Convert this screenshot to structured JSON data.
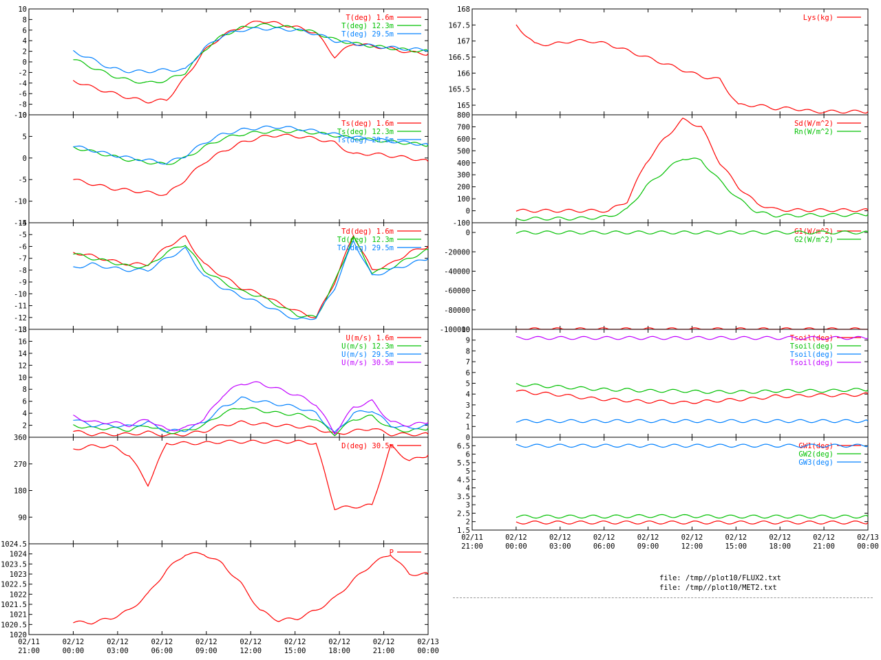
{
  "colors": {
    "red": "#ff0000",
    "green": "#00c000",
    "blue": "#0080ff",
    "magenta": "#c000ff",
    "axis": "#000000",
    "grid": "#a0a0a0"
  },
  "files": [
    "file: /tmp//plot10/FLUX2.txt",
    "file: /tmp//plot10/MET2.txt"
  ],
  "x_axis": {
    "start": "02/11 21:00",
    "end": "02/13 00:00",
    "tick_dates": [
      "02/11",
      "02/12",
      "02/12",
      "02/12",
      "02/12",
      "02/12",
      "02/12",
      "02/12",
      "02/12",
      "02/13"
    ],
    "tick_times": [
      "21:00",
      "00:00",
      "03:00",
      "06:00",
      "09:00",
      "12:00",
      "15:00",
      "18:00",
      "21:00",
      "00:00"
    ],
    "data_start_hours": 3
  },
  "chart_data": [
    {
      "type": "line",
      "panel": "left-1",
      "ylim": [
        -10,
        10
      ],
      "yticks": [
        "10",
        "8",
        "6",
        "4",
        "2",
        "0",
        "-2",
        "-4",
        "-6",
        "-8",
        "-10"
      ],
      "series": [
        {
          "name": "T(deg)  1.6m",
          "color": "red",
          "values": [
            -3.5,
            -4.8,
            -5.8,
            -6.8,
            -7.5,
            -7.2,
            -3,
            2,
            5,
            6.6,
            7.8,
            7.2,
            6.5,
            5.5,
            1,
            3.5,
            3,
            2.5,
            1.8,
            1.5
          ]
        },
        {
          "name": "T(deg) 12.3m",
          "color": "green",
          "values": [
            0.5,
            -1,
            -2.5,
            -3.5,
            -4,
            -3.5,
            -2,
            2.2,
            5,
            6.4,
            7,
            6.8,
            6.3,
            5.5,
            4.2,
            3.5,
            3,
            2.6,
            2.2,
            2
          ]
        },
        {
          "name": "T(deg) 29.5m",
          "color": "blue",
          "values": [
            2,
            0.5,
            -1.2,
            -1.8,
            -1.8,
            -1.5,
            -1.5,
            2.5,
            5,
            6,
            6.3,
            6.2,
            6,
            5.3,
            4,
            3.5,
            3,
            2.7,
            2.4,
            2.3
          ]
        }
      ]
    },
    {
      "type": "line",
      "panel": "left-2",
      "ylim": [
        -15,
        10
      ],
      "yticks": [
        "10",
        "5",
        "0",
        "-5",
        "-10",
        "-15"
      ],
      "series": [
        {
          "name": "Ts(deg)  1.6m",
          "color": "red",
          "values": [
            -5,
            -6,
            -7,
            -7.5,
            -8,
            -8.5,
            -5,
            -1,
            1.5,
            3.5,
            4.8,
            5.3,
            5,
            4.5,
            3.5,
            0.8,
            1,
            0.5,
            0,
            -0.8
          ]
        },
        {
          "name": "Ts(deg) 12.3m",
          "color": "green",
          "values": [
            2.5,
            1.5,
            0.5,
            -0.5,
            -1,
            -1.5,
            0,
            2.5,
            4.5,
            5.5,
            6,
            6.2,
            6.2,
            5.8,
            5.2,
            4.6,
            4.2,
            3.8,
            3.4,
            3
          ]
        },
        {
          "name": "Ts(deg) 29.5m",
          "color": "blue",
          "values": [
            2.8,
            1.8,
            0.8,
            0,
            -0.5,
            -1.2,
            0.5,
            3.5,
            5.5,
            6.5,
            7,
            7.2,
            6.8,
            6.2,
            5.5,
            4.8,
            4.4,
            3.9,
            3.5,
            3
          ]
        }
      ]
    },
    {
      "type": "line",
      "panel": "left-3",
      "ylim": [
        -13,
        -4
      ],
      "yticks": [
        "-4",
        "-5",
        "-6",
        "-7",
        "-8",
        "-9",
        "-10",
        "-11",
        "-12",
        "-13"
      ],
      "series": [
        {
          "name": "Td(deg)  1.6m",
          "color": "red",
          "values": [
            -6.5,
            -6.8,
            -7.2,
            -7.5,
            -7.5,
            -6,
            -5.2,
            -7.5,
            -8.5,
            -9.5,
            -10,
            -10.8,
            -11.5,
            -12,
            -9,
            -5,
            -8,
            -7.5,
            -6.5,
            -6
          ]
        },
        {
          "name": "Td(deg) 12.3m",
          "color": "green",
          "values": [
            -6.6,
            -7,
            -7.3,
            -7.7,
            -7.7,
            -6.5,
            -5.8,
            -8,
            -9,
            -9.8,
            -10.2,
            -11,
            -11.8,
            -12,
            -9,
            -5.2,
            -8.2,
            -7.8,
            -7,
            -6.3
          ]
        },
        {
          "name": "Td(deg) 29.5m",
          "color": "blue",
          "values": [
            -7.8,
            -7.5,
            -7.8,
            -8,
            -8,
            -7,
            -6.2,
            -8.5,
            -9.5,
            -10.2,
            -10.8,
            -11.5,
            -12.2,
            -12,
            -9.5,
            -5.5,
            -8.5,
            -8,
            -7.5,
            -7
          ]
        }
      ]
    },
    {
      "type": "line",
      "panel": "left-4",
      "ylim": [
        0,
        18
      ],
      "yticks": [
        "18",
        "16",
        "14",
        "12",
        "10",
        "8",
        "6",
        "4",
        "2"
      ],
      "series": [
        {
          "name": "U(m/s)  1.6m",
          "color": "red",
          "values": [
            1,
            0.5,
            0.5,
            0.5,
            0.8,
            0.3,
            0.5,
            1,
            2,
            2.5,
            2.2,
            2,
            1.8,
            1.5,
            0.5,
            1,
            1.5,
            0.5,
            0.5,
            0.5
          ]
        },
        {
          "name": "U(m/s) 12.3m",
          "color": "green",
          "values": [
            2,
            1.5,
            1.5,
            1.2,
            2,
            0.8,
            1,
            2,
            4,
            5,
            4.5,
            4,
            3.8,
            3,
            0.5,
            3,
            3.5,
            1.5,
            1,
            1.5
          ]
        },
        {
          "name": "U(m/s) 29.5m",
          "color": "blue",
          "values": [
            3,
            2,
            2,
            1.8,
            2.5,
            1,
            1.2,
            2.5,
            5,
            6.5,
            6,
            5.5,
            5,
            4,
            0.6,
            4,
            4.5,
            2,
            1.5,
            2
          ]
        },
        {
          "name": "U(m/s) 30.5m",
          "color": "magenta",
          "values": [
            3.5,
            2.5,
            2.5,
            2,
            3,
            1.2,
            1.5,
            3,
            7,
            9,
            9,
            8,
            7,
            5.5,
            0.7,
            5,
            6,
            2.5,
            2,
            2.5
          ]
        }
      ]
    },
    {
      "type": "line",
      "panel": "left-5",
      "ylim": [
        0,
        360
      ],
      "yticks": [
        "360",
        "270",
        "180",
        "90"
      ],
      "series": [
        {
          "name": "D(deg)  30.5m",
          "color": "red",
          "values": [
            320,
            330,
            330,
            300,
            200,
            340,
            340,
            340,
            345,
            345,
            345,
            345,
            345,
            340,
            120,
            125,
            130,
            330,
            280,
            300
          ]
        }
      ]
    },
    {
      "type": "line",
      "panel": "left-6",
      "ylim": [
        1020,
        1024.5
      ],
      "yticks": [
        "1024.5",
        "1024",
        "1023.5",
        "1023",
        "1022.5",
        "1022",
        "1021.5",
        "1021",
        "1020.5",
        "1020"
      ],
      "series": [
        {
          "name": "P",
          "color": "red",
          "values": [
            1020.6,
            1020.6,
            1020.8,
            1021.2,
            1022,
            1023.2,
            1024,
            1024,
            1023.5,
            1022.5,
            1021.2,
            1020.7,
            1020.8,
            1021.2,
            1021.8,
            1022.7,
            1023.5,
            1024,
            1023,
            1023
          ]
        }
      ]
    },
    {
      "type": "line",
      "panel": "right-1",
      "ylim": [
        164.7,
        168
      ],
      "yticks": [
        "168",
        "167.5",
        "167",
        "166.5",
        "166",
        "165.5",
        "165"
      ],
      "series": [
        {
          "name": "Lys(kg)",
          "color": "red",
          "values": [
            167.5,
            166.9,
            166.9,
            167,
            167,
            166.9,
            166.7,
            166.5,
            166.3,
            166.1,
            165.9,
            165.8,
            165,
            165,
            164.9,
            164.9,
            164.8,
            164.8,
            164.8,
            164.8
          ]
        }
      ]
    },
    {
      "type": "line",
      "panel": "right-2",
      "ylim": [
        -100,
        800
      ],
      "yticks": [
        "800",
        "700",
        "600",
        "500",
        "400",
        "300",
        "200",
        "100",
        "0",
        "-100"
      ],
      "series": [
        {
          "name": "Sd(W/m^2)",
          "color": "red",
          "values": [
            0,
            0,
            0,
            0,
            0,
            0,
            80,
            400,
            600,
            760,
            700,
            400,
            200,
            60,
            10,
            5,
            5,
            5,
            5,
            5
          ]
        },
        {
          "name": "Rn(W/m^2)",
          "color": "green",
          "values": [
            -70,
            -65,
            -65,
            -65,
            -60,
            -50,
            10,
            200,
            330,
            440,
            420,
            250,
            100,
            -10,
            -40,
            -40,
            -35,
            -35,
            -35,
            -30
          ]
        }
      ]
    },
    {
      "type": "line",
      "panel": "right-3",
      "ylim": [
        -100000,
        10000
      ],
      "yticks": [
        "0",
        "-20000",
        "-40000",
        "-60000",
        "-80000",
        "-100000"
      ],
      "series": [
        {
          "name": "G1(W/m^2)",
          "color": "red",
          "values": [
            -100000,
            -100000,
            -100000,
            -100000,
            -100000,
            -100000,
            -100000,
            -100000,
            -100000,
            -100000,
            -100000,
            -100000,
            -100000,
            -100000,
            -100000,
            -100000,
            -100000,
            -100000,
            -100000,
            -100000
          ]
        },
        {
          "name": "G2(W/m^2)",
          "color": "green",
          "values": [
            0,
            0,
            0,
            0,
            0,
            0,
            0,
            0,
            0,
            0,
            0,
            0,
            0,
            0,
            0,
            0,
            0,
            0,
            0,
            0
          ]
        }
      ]
    },
    {
      "type": "line",
      "panel": "right-4",
      "ylim": [
        0,
        10
      ],
      "yticks": [
        "10",
        "9",
        "8",
        "7",
        "6",
        "5",
        "4",
        "3",
        "2",
        "1",
        "0"
      ],
      "series": [
        {
          "name": "Tsoil(deg)",
          "color": "red",
          "values": [
            4.3,
            4.1,
            4,
            3.8,
            3.6,
            3.5,
            3.4,
            3.3,
            3.3,
            3.2,
            3.3,
            3.4,
            3.5,
            3.6,
            3.8,
            3.8,
            3.9,
            3.9,
            3.9,
            4
          ]
        },
        {
          "name": "Tsoil(deg)",
          "color": "green",
          "values": [
            4.9,
            4.8,
            4.7,
            4.6,
            4.5,
            4.4,
            4.4,
            4.3,
            4.3,
            4.3,
            4.2,
            4.2,
            4.2,
            4.2,
            4.3,
            4.3,
            4.3,
            4.3,
            4.4,
            4.4
          ]
        },
        {
          "name": "Tsoil(deg)",
          "color": "blue",
          "values": [
            1.5,
            1.5,
            1.5,
            1.5,
            1.5,
            1.5,
            1.5,
            1.5,
            1.5,
            1.5,
            1.5,
            1.5,
            1.5,
            1.5,
            1.5,
            1.5,
            1.5,
            1.5,
            1.5,
            1.5
          ]
        },
        {
          "name": "Tsoil(deg)",
          "color": "magenta",
          "values": [
            9.2,
            9.2,
            9.2,
            9.2,
            9.2,
            9.2,
            9.2,
            9.2,
            9.2,
            9.2,
            9.2,
            9.2,
            9.2,
            9.2,
            9.2,
            9.2,
            9.2,
            9.2,
            9.2,
            9.2
          ]
        }
      ]
    },
    {
      "type": "line",
      "panel": "right-5",
      "ylim": [
        1.5,
        7
      ],
      "yticks": [
        "6.5",
        "6",
        "5.5",
        "5",
        "4.5",
        "4",
        "3.5",
        "3",
        "2.5",
        "2",
        "1.5"
      ],
      "series": [
        {
          "name": "GW1(deg)",
          "color": "red",
          "values": [
            1.95,
            1.95,
            1.95,
            1.95,
            1.95,
            1.95,
            1.95,
            1.95,
            1.95,
            1.95,
            1.95,
            1.95,
            1.95,
            1.95,
            1.95,
            1.95,
            1.95,
            1.95,
            1.95,
            1.95
          ]
        },
        {
          "name": "GW2(deg)",
          "color": "green",
          "values": [
            2.3,
            2.3,
            2.3,
            2.3,
            2.3,
            2.3,
            2.32,
            2.33,
            2.33,
            2.33,
            2.32,
            2.3,
            2.3,
            2.3,
            2.3,
            2.3,
            2.3,
            2.3,
            2.3,
            2.3
          ]
        },
        {
          "name": "GW3(deg)",
          "color": "blue",
          "values": [
            6.5,
            6.5,
            6.5,
            6.5,
            6.5,
            6.5,
            6.5,
            6.5,
            6.5,
            6.5,
            6.5,
            6.5,
            6.5,
            6.5,
            6.5,
            6.5,
            6.5,
            6.5,
            6.5,
            6.5
          ]
        }
      ]
    }
  ]
}
